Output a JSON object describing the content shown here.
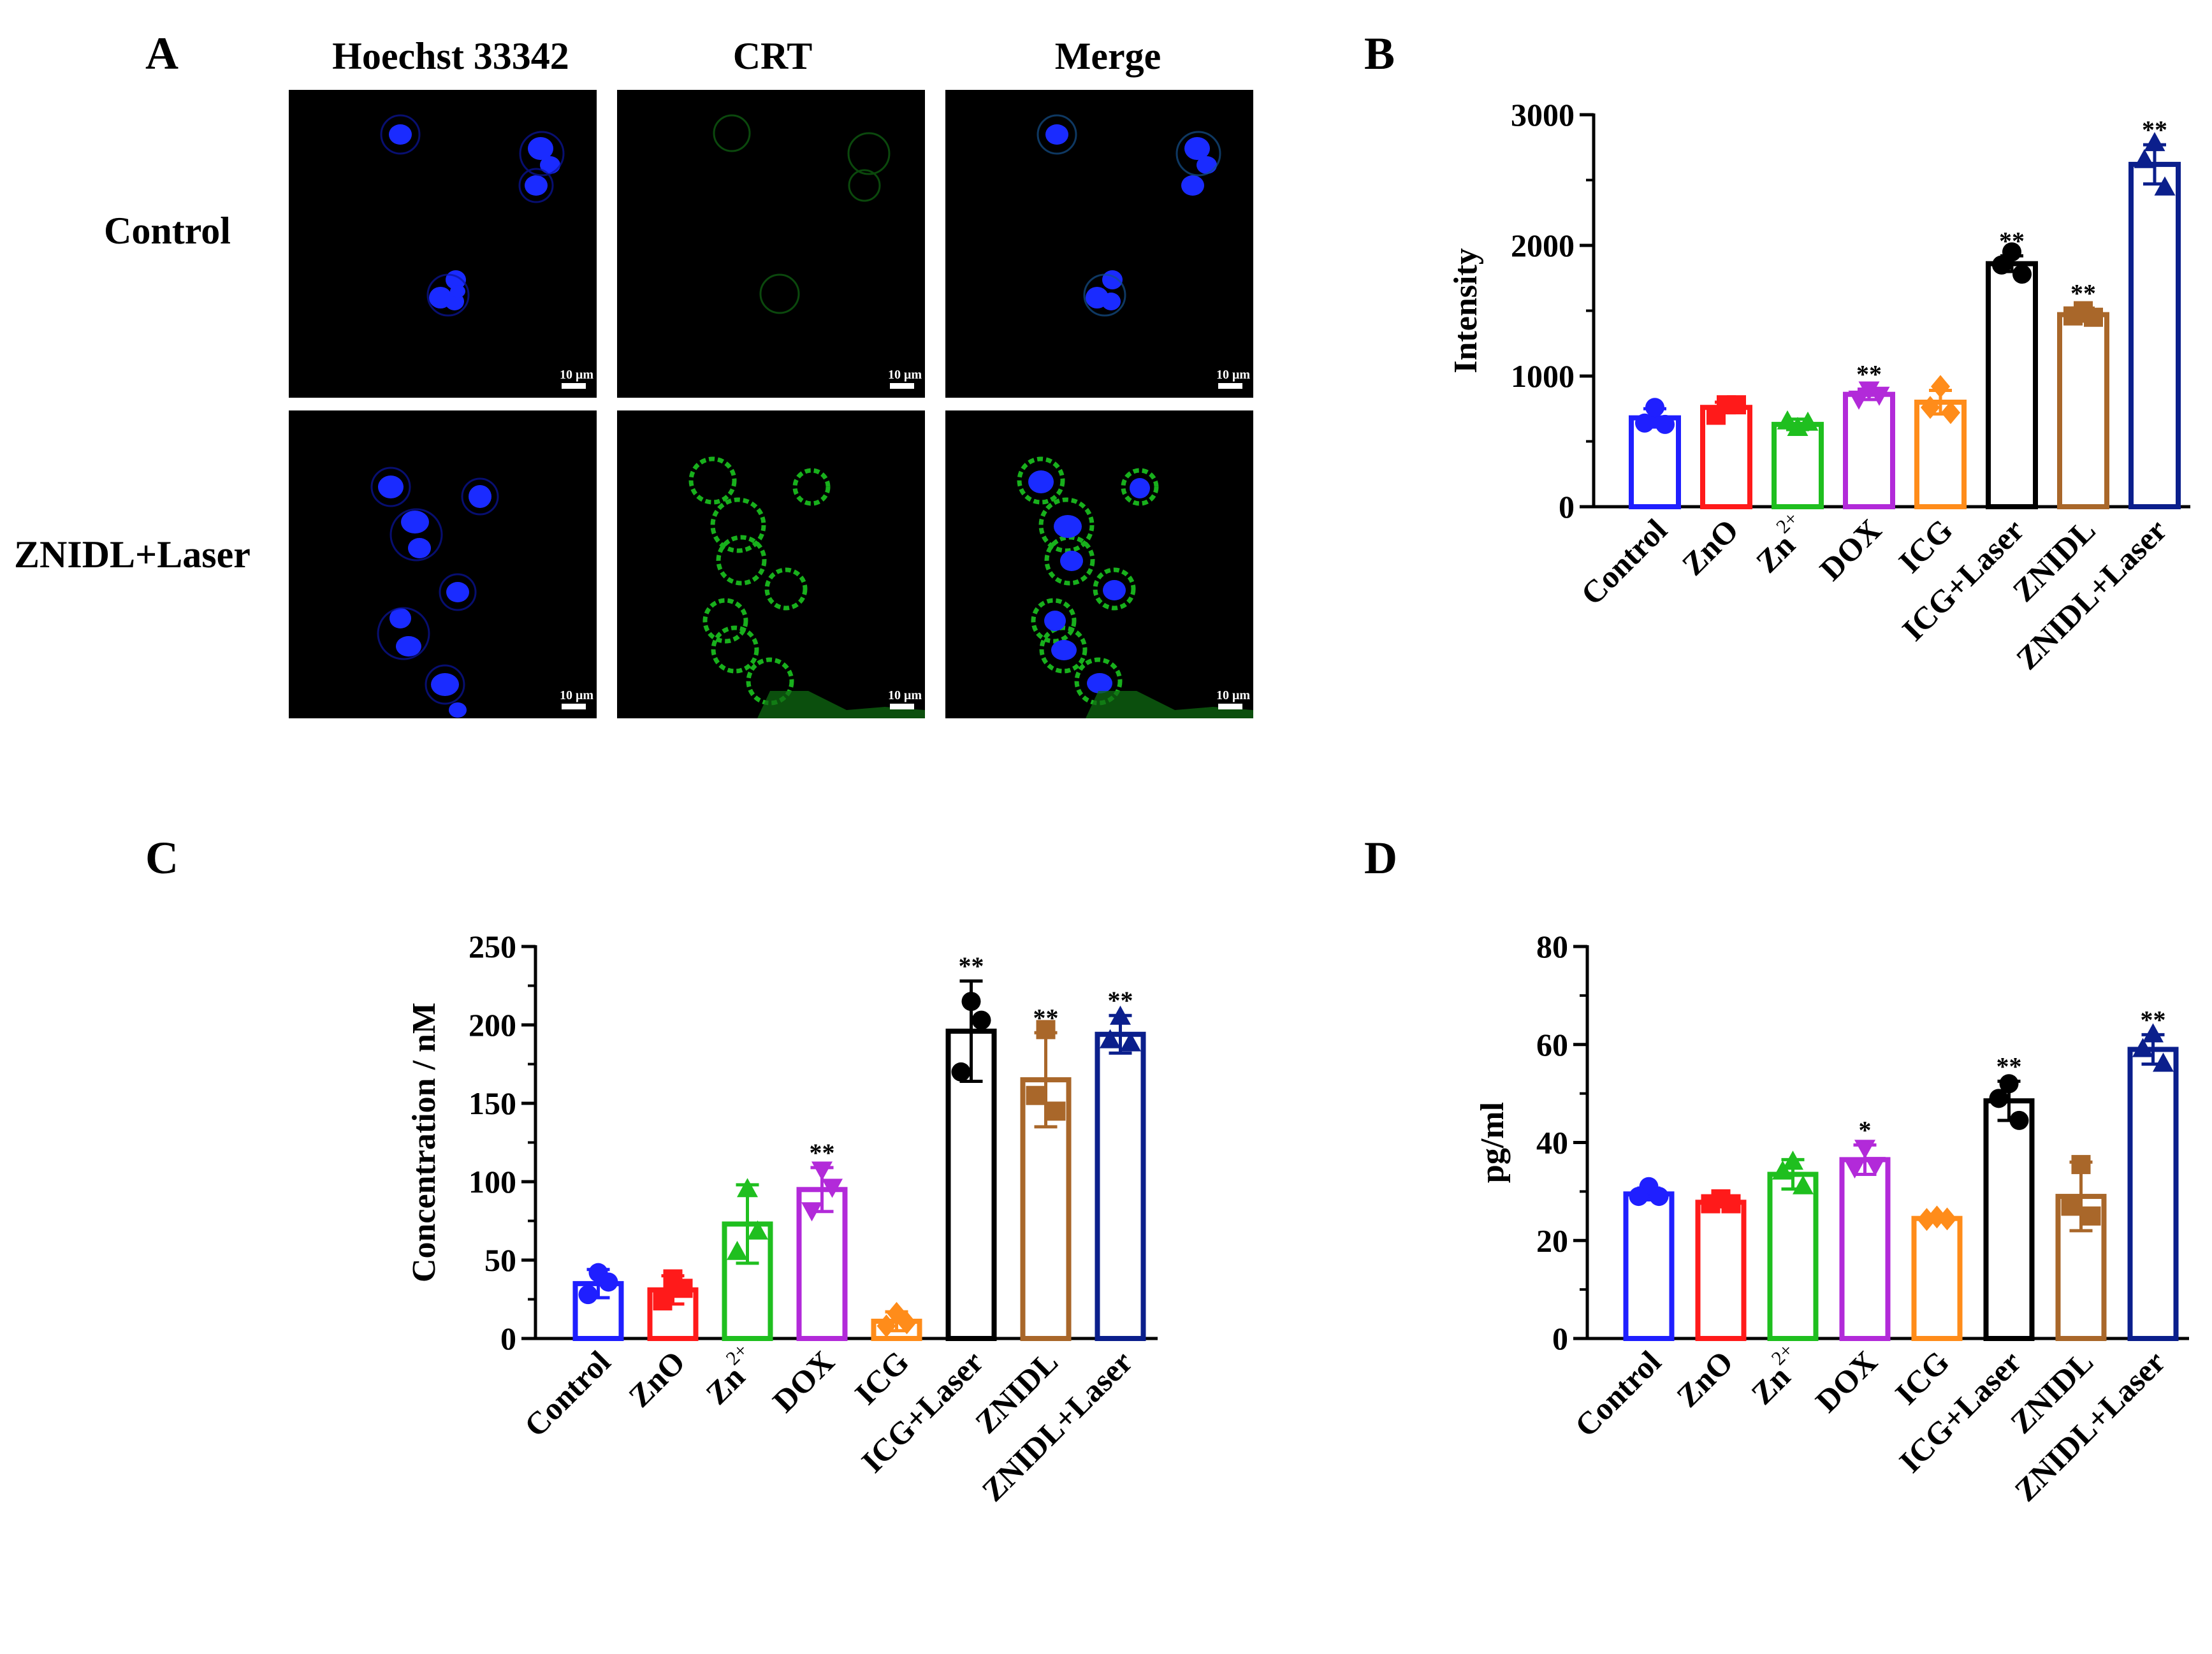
{
  "panel_letters": {
    "a": "A",
    "b": "B",
    "c": "C",
    "d": "D"
  },
  "microscopy": {
    "columns": [
      "Hoechst 33342",
      "CRT",
      "Merge"
    ],
    "rows": [
      "Control",
      "ZNIDL+Laser"
    ],
    "scale_bar": "10 μm"
  },
  "colors": {
    "Control": "#1f1fff",
    "ZnO": "#ff1a1a",
    "Zn2+": "#1fbf1f",
    "DOX": "#b22ad9",
    "ICG": "#ff8c1a",
    "ICG+Laser": "#000000",
    "ZNIDL": "#a9672a",
    "ZNIDL+Laser": "#0b1f8c",
    "nucleus": "#1a2bff",
    "crt": "#18b01c"
  },
  "chart_data": [
    {
      "id": "B",
      "type": "bar",
      "ylabel": "Intensity",
      "ylim": [
        0,
        3000
      ],
      "yticks": [
        0,
        1000,
        2000,
        3000
      ],
      "categories": [
        "Control",
        "ZnO",
        "Zn2+",
        "DOX",
        "ICG",
        "ICG+Laser",
        "ZNIDL",
        "ZNIDL+Laser"
      ],
      "values": [
        680,
        760,
        630,
        860,
        800,
        1860,
        1470,
        2620
      ],
      "errors": [
        70,
        40,
        40,
        40,
        90,
        60,
        50,
        150
      ],
      "points": [
        [
          760,
          640,
          630
        ],
        [
          780,
          700,
          780
        ],
        [
          600,
          650,
          640
        ],
        [
          900,
          830,
          860
        ],
        [
          920,
          760,
          720
        ],
        [
          1950,
          1850,
          1780
        ],
        [
          1500,
          1460,
          1450
        ],
        [
          2780,
          2650,
          2440
        ]
      ],
      "significance": [
        "",
        "",
        "",
        "**",
        "",
        "**",
        "**",
        "**"
      ]
    },
    {
      "id": "C",
      "type": "bar",
      "ylabel": "Concentration / nM",
      "ylim": [
        0,
        250
      ],
      "yticks": [
        0,
        50,
        100,
        150,
        200,
        250
      ],
      "categories": [
        "Control",
        "ZnO",
        "Zn2+",
        "DOX",
        "ICG",
        "ICG+Laser",
        "ZNIDL",
        "ZNIDL+Laser"
      ],
      "values": [
        35,
        31,
        73,
        95,
        11,
        196,
        165,
        194
      ],
      "errors": [
        9,
        9,
        25,
        14,
        6,
        32,
        30,
        12
      ],
      "points": [
        [
          42,
          28,
          36
        ],
        [
          38,
          24,
          32
        ],
        [
          95,
          55,
          68
        ],
        [
          108,
          82,
          97
        ],
        [
          16,
          8,
          10
        ],
        [
          215,
          170,
          203
        ],
        [
          197,
          155,
          145
        ],
        [
          205,
          190,
          188
        ]
      ],
      "significance": [
        "",
        "",
        "",
        "**",
        "",
        "**",
        "**",
        "**"
      ]
    },
    {
      "id": "D",
      "type": "bar",
      "ylabel": "pg/ml",
      "ylim": [
        0,
        80
      ],
      "yticks": [
        0,
        20,
        40,
        60,
        80
      ],
      "categories": [
        "Control",
        "ZnO",
        "Zn2+",
        "DOX",
        "ICG",
        "ICG+Laser",
        "ZNIDL",
        "ZNIDL+Laser"
      ],
      "values": [
        29.5,
        27.8,
        33.5,
        36.5,
        24.5,
        48.5,
        29,
        59
      ],
      "errors": [
        1.2,
        0.8,
        3,
        3,
        0.4,
        4,
        7,
        3
      ],
      "points": [
        [
          31,
          29,
          29
        ],
        [
          28.5,
          27.5,
          27.5
        ],
        [
          36,
          34,
          31
        ],
        [
          39,
          35,
          35.5
        ],
        [
          24.8,
          24.3,
          24.4
        ],
        [
          52,
          49,
          44.5
        ],
        [
          35.5,
          27,
          25
        ],
        [
          62,
          59,
          56
        ]
      ],
      "significance": [
        "",
        "",
        "",
        "*",
        "",
        "**",
        "",
        "**"
      ]
    }
  ]
}
